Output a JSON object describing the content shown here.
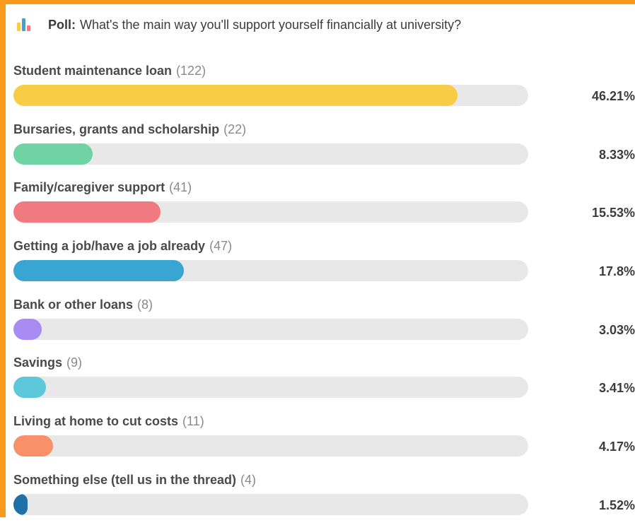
{
  "poll": {
    "label": "Poll:",
    "question": "What's the main way you'll support yourself financially at university?",
    "icon": "bar-chart-icon",
    "frame_color": "#fa9a1a",
    "options": [
      {
        "label": "Student maintenance loan",
        "count": "(122)",
        "percent": "46.21%",
        "fraction": 0.8624,
        "color": "#f8cc45"
      },
      {
        "label": "Bursaries, grants and scholarship",
        "count": "(22)",
        "percent": "8.33%",
        "fraction": 0.154,
        "color": "#6fd3a3"
      },
      {
        "label": "Family/caregiver support",
        "count": "(41)",
        "percent": "15.53%",
        "fraction": 0.286,
        "color": "#f07a80"
      },
      {
        "label": "Getting a job/have a job already",
        "count": "(47)",
        "percent": "17.8%",
        "fraction": 0.331,
        "color": "#38a5d2"
      },
      {
        "label": "Bank or other loans",
        "count": "(8)",
        "percent": "3.03%",
        "fraction": 0.055,
        "color": "#a98cf3"
      },
      {
        "label": "Savings",
        "count": "(9)",
        "percent": "3.41%",
        "fraction": 0.063,
        "color": "#5cc8da"
      },
      {
        "label": "Living at home to cut costs",
        "count": "(11)",
        "percent": "4.17%",
        "fraction": 0.077,
        "color": "#f8906a"
      },
      {
        "label": "Something else (tell us in the thread)",
        "count": "(4)",
        "percent": "1.52%",
        "fraction": 0.028,
        "color": "#1f6fa8"
      }
    ]
  }
}
